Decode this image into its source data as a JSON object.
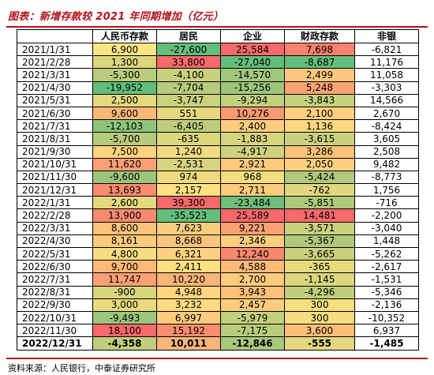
{
  "title": "图表：新增存款较 2021 年同期增加（亿元）",
  "source": "资料来源：人民银行，中泰证券研究所",
  "columns": [
    "",
    "人民币存款",
    "居民",
    "企业",
    "财政存款",
    "非银"
  ],
  "rows": [
    {
      "date": "2021/1/31",
      "values": [
        "6,900",
        "-27,600",
        "25,584",
        "7,698",
        "-6,821"
      ],
      "colors": [
        "#fbe584",
        "#63be7b",
        "#f8696b",
        "#f8826d",
        "#fff"
      ]
    },
    {
      "date": "2021/2/28",
      "values": [
        "1,300",
        "33,800",
        "-27,040",
        "-8,687",
        "11,176"
      ],
      "colors": [
        "#ded67f",
        "#f8696b",
        "#63be7b",
        "#63be7b",
        "#fff"
      ]
    },
    {
      "date": "2021/3/31",
      "values": [
        "-5,300",
        "-4,100",
        "-14,570",
        "2,499",
        "11,058"
      ],
      "colors": [
        "#b9cb7c",
        "#c7d17e",
        "#a1c77c",
        "#fcc87d",
        "#fff"
      ]
    },
    {
      "date": "2021/4/30",
      "values": [
        "-19,952",
        "-7,704",
        "-15,256",
        "5,248",
        "-3,303"
      ],
      "colors": [
        "#63be7b",
        "#b7cb7c",
        "#9dc67b",
        "#f9a374",
        "#fff"
      ]
    },
    {
      "date": "2021/5/31",
      "values": [
        "2,500",
        "-3,747",
        "-9,294",
        "-3,843",
        "14,566"
      ],
      "colors": [
        "#e4d880",
        "#c9d27e",
        "#c2d07e",
        "#c6d17e",
        "#fff"
      ]
    },
    {
      "date": "2021/6/30",
      "values": [
        "9,600",
        "551",
        "10,276",
        "2,100",
        "2,670"
      ],
      "colors": [
        "#fcb878",
        "#e5d880",
        "#f99a72",
        "#fed07f",
        "#fff"
      ]
    },
    {
      "date": "2021/7/31",
      "values": [
        "-12,103",
        "-6,405",
        "2,400",
        "1,136",
        "-8,424"
      ],
      "colors": [
        "#8ec37b",
        "#bdcd7d",
        "#fccd7e",
        "#fbd881",
        "#fff"
      ]
    },
    {
      "date": "2021/8/31",
      "values": [
        "-5,700",
        "-635",
        "-1,883",
        "-3,615",
        "3,605"
      ],
      "colors": [
        "#b7cb7c",
        "#dcd67f",
        "#d7d47f",
        "#c8d27e",
        "#fff"
      ]
    },
    {
      "date": "2021/9/30",
      "values": [
        "7,500",
        "1,240",
        "-4,917",
        "3,286",
        "2,508"
      ],
      "colors": [
        "#fcd37f",
        "#f0dc82",
        "#d0d27f",
        "#fbc27b",
        "#fff"
      ]
    },
    {
      "date": "2021/10/31",
      "values": [
        "11,620",
        "-2,531",
        "2,921",
        "2,050",
        "9,482"
      ],
      "colors": [
        "#fba075",
        "#d6d47f",
        "#fcc97d",
        "#fcd07f",
        "#fff"
      ]
    },
    {
      "date": "2021/11/30",
      "values": [
        "-9,600",
        "974",
        "968",
        "-5,424",
        "-8,773"
      ],
      "colors": [
        "#9bc67c",
        "#eddb81",
        "#f4dd81",
        "#b1c97c",
        "#fff"
      ]
    },
    {
      "date": "2021/12/31",
      "values": [
        "13,693",
        "2,157",
        "2,711",
        "-762",
        "1,756"
      ],
      "colors": [
        "#fa8c70",
        "#fee182",
        "#fccb7e",
        "#e1d780",
        "#fff"
      ]
    },
    {
      "date": "2022/1/31",
      "values": [
        "2,600",
        "39,300",
        "-23,484",
        "-5,851",
        "-716"
      ],
      "colors": [
        "#e4d880",
        "#f8696b",
        "#6dbf7b",
        "#acc97c",
        "#fff"
      ]
    },
    {
      "date": "2022/2/28",
      "values": [
        "13,900",
        "-35,523",
        "25,589",
        "14,481",
        "-2,200"
      ],
      "colors": [
        "#f98a70",
        "#63be7b",
        "#f8696b",
        "#f8696b",
        "#fff"
      ]
    },
    {
      "date": "2022/3/31",
      "values": [
        "8,600",
        "7,623",
        "9,221",
        "-3,571",
        "-3,040"
      ],
      "colors": [
        "#fbc37b",
        "#f8cd7e",
        "#f9a173",
        "#c8d27e",
        "#fff"
      ]
    },
    {
      "date": "2022/4/30",
      "values": [
        "8,161",
        "8,668",
        "2,346",
        "-5,367",
        "1,448"
      ],
      "colors": [
        "#fcc97d",
        "#f9c47c",
        "#fccd7e",
        "#b1c97c",
        "#fff"
      ]
    },
    {
      "date": "2022/5/31",
      "values": [
        "4,800",
        "6,321",
        "12,240",
        "-3,665",
        "-5,262"
      ],
      "colors": [
        "#f7dd81",
        "#fbd07f",
        "#f9886f",
        "#c7d17e",
        "#fff"
      ]
    },
    {
      "date": "2022/6/30",
      "values": [
        "9,700",
        "2,411",
        "4,588",
        "-365",
        "-2,617"
      ],
      "colors": [
        "#fbb878",
        "#fedf82",
        "#fcbb79",
        "#e6d980",
        "#fff"
      ]
    },
    {
      "date": "2022/7/31",
      "values": [
        "11,747",
        "10,220",
        "2,700",
        "-1,145",
        "-1,531"
      ],
      "colors": [
        "#fba075",
        "#f9b478",
        "#fccb7e",
        "#dbd67f",
        "#fff"
      ]
    },
    {
      "date": "2022/8/31",
      "values": [
        "-900",
        "4,948",
        "3,943",
        "-4,296",
        "-5,346"
      ],
      "colors": [
        "#d8d57f",
        "#fed680",
        "#fcc07b",
        "#bfcf7d",
        "#fff"
      ]
    },
    {
      "date": "2022/9/30",
      "values": [
        "3,000",
        "3,232",
        "2,457",
        "300",
        "-2,136"
      ],
      "colors": [
        "#e9d980",
        "#fedb81",
        "#fccd7e",
        "#f4de81",
        "#fff"
      ]
    },
    {
      "date": "2022/10/31",
      "values": [
        "-9,493",
        "6,997",
        "-5,979",
        "300",
        "-10,352"
      ],
      "colors": [
        "#9cc67c",
        "#facd7e",
        "#c5d07e",
        "#f4de81",
        "#fff"
      ]
    },
    {
      "date": "2022/11/30",
      "values": [
        "18,100",
        "15,192",
        "-7,175",
        "3,600",
        "6,937"
      ],
      "colors": [
        "#f8696b",
        "#f98e70",
        "#b9cc7d",
        "#fbbf7b",
        "#fff"
      ]
    },
    {
      "date": "2022/12/31",
      "values": [
        "-4,358",
        "10,011",
        "-12,846",
        "-555",
        "-1,485"
      ],
      "colors": [
        "#c0ce7d",
        "#f9b578",
        "#a9c87c",
        "#e2d880",
        "#fff"
      ],
      "total": true
    }
  ]
}
